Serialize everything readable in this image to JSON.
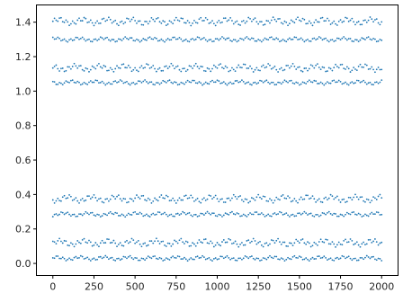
{
  "chart_data": {
    "type": "scatter",
    "title": "",
    "xlabel": "",
    "ylabel": "",
    "xlim": [
      -100,
      2100
    ],
    "ylim": [
      -0.07,
      1.5
    ],
    "xticks": [
      0,
      250,
      500,
      750,
      1000,
      1250,
      1500,
      1750,
      2000
    ],
    "xtick_labels": [
      "0",
      "250",
      "500",
      "750",
      "1000",
      "1250",
      "1500",
      "1750",
      "2000"
    ],
    "yticks": [
      0.0,
      0.2,
      0.4,
      0.6,
      0.8,
      1.0,
      1.2,
      1.4
    ],
    "ytick_labels": [
      "0.0",
      "0.2",
      "0.4",
      "0.6",
      "0.8",
      "1.0",
      "1.2",
      "1.4"
    ],
    "grid": false,
    "legend": false,
    "marker_color": "#1f77b4",
    "point_x_range": [
      0,
      2000
    ],
    "point_step": 10,
    "bands": [
      {
        "center": 1.405,
        "half_width": 0.025
      },
      {
        "center": 1.3,
        "half_width": 0.015
      },
      {
        "center": 1.135,
        "half_width": 0.025
      },
      {
        "center": 1.05,
        "half_width": 0.015
      },
      {
        "center": 0.375,
        "half_width": 0.025
      },
      {
        "center": 0.285,
        "half_width": 0.015
      },
      {
        "center": 0.12,
        "half_width": 0.025
      },
      {
        "center": 0.03,
        "half_width": 0.015
      }
    ]
  }
}
